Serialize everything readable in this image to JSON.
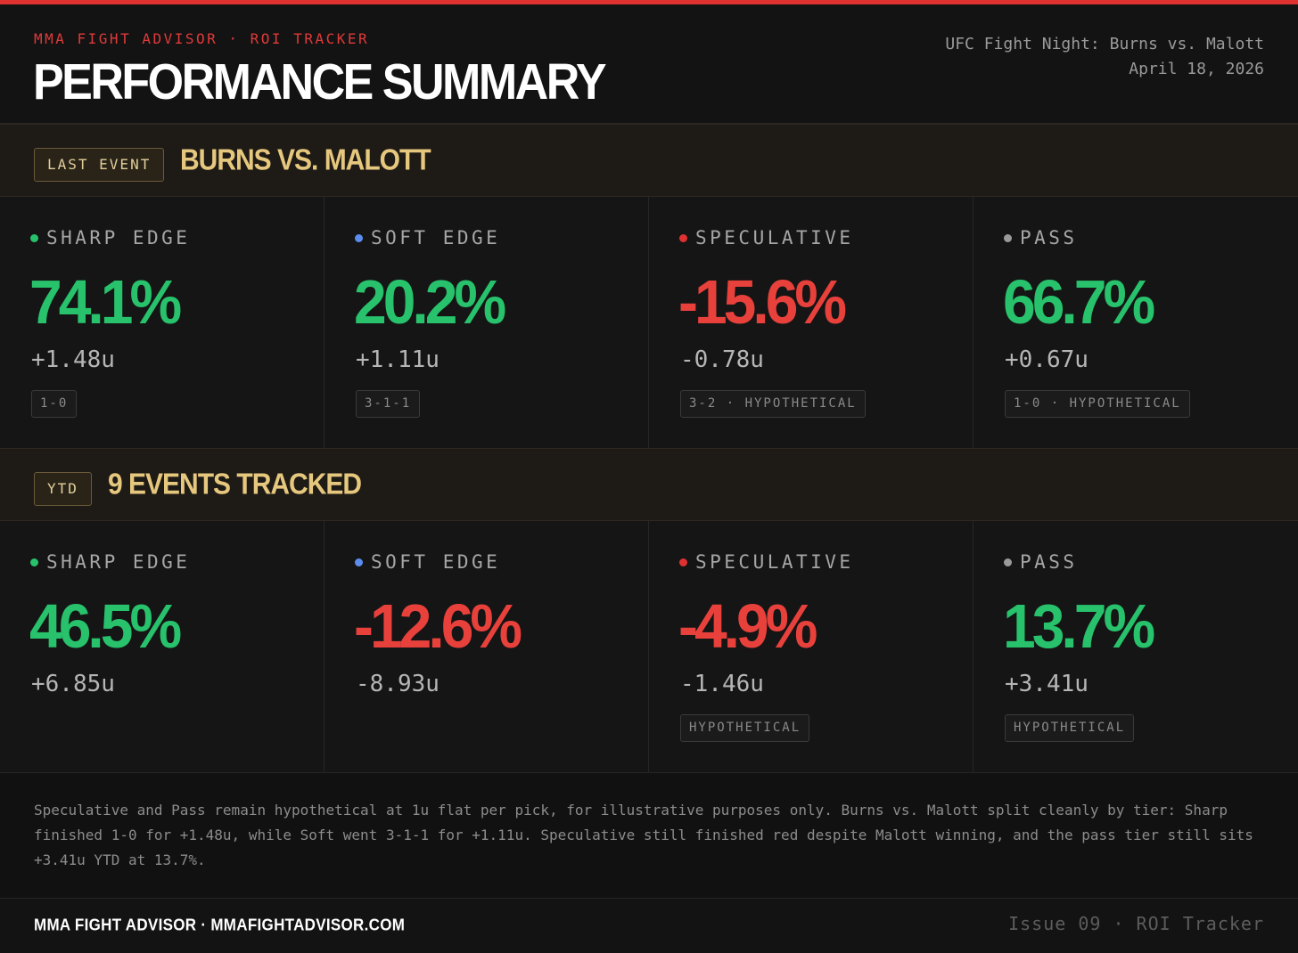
{
  "header": {
    "kicker": "MMA FIGHT ADVISOR · ROI TRACKER",
    "title": "PERFORMANCE SUMMARY",
    "event_name": "UFC Fight Night: Burns vs. Malott",
    "event_date": "April 18, 2026"
  },
  "colors": {
    "sharp": "#27c26b",
    "soft": "#5b8def",
    "speculative": "#e03131",
    "pass": "#9a9a9a",
    "positive": "#27c26b",
    "negative": "#e8413c",
    "accent": "#e03131",
    "gold": "#e6c77e"
  },
  "last_event": {
    "badge": "LAST EVENT",
    "title": "BURNS VS. MALOTT",
    "tiers": [
      {
        "label": "SHARP EDGE",
        "pct": "74.1%",
        "units": "+1.48u",
        "tag": "1-0"
      },
      {
        "label": "SOFT EDGE",
        "pct": "20.2%",
        "units": "+1.11u",
        "tag": "3-1-1"
      },
      {
        "label": "SPECULATIVE",
        "pct": "-15.6%",
        "units": "-0.78u",
        "tag": "3-2 · HYPOTHETICAL"
      },
      {
        "label": "PASS",
        "pct": "66.7%",
        "units": "+0.67u",
        "tag": "1-0 · HYPOTHETICAL"
      }
    ]
  },
  "ytd": {
    "badge": "YTD",
    "title": "9 EVENTS TRACKED",
    "tiers": [
      {
        "label": "SHARP EDGE",
        "pct": "46.5%",
        "units": "+6.85u",
        "tag": ""
      },
      {
        "label": "SOFT EDGE",
        "pct": "-12.6%",
        "units": "-8.93u",
        "tag": ""
      },
      {
        "label": "SPECULATIVE",
        "pct": "-4.9%",
        "units": "-1.46u",
        "tag": "HYPOTHETICAL"
      },
      {
        "label": "PASS",
        "pct": "13.7%",
        "units": "+3.41u",
        "tag": "HYPOTHETICAL"
      }
    ]
  },
  "note": "Speculative and Pass remain hypothetical at 1u flat per pick, for illustrative purposes only. Burns vs. Malott split cleanly by tier: Sharp finished 1-0 for +1.48u, while Soft went 3-1-1 for +1.11u. Speculative still finished red despite Malott winning, and the pass tier still sits +3.41u YTD at 13.7%.",
  "footer": {
    "brand": "MMA FIGHT ADVISOR · MMAFIGHTADVISOR.COM",
    "issue": "Issue 09 · ROI Tracker"
  }
}
